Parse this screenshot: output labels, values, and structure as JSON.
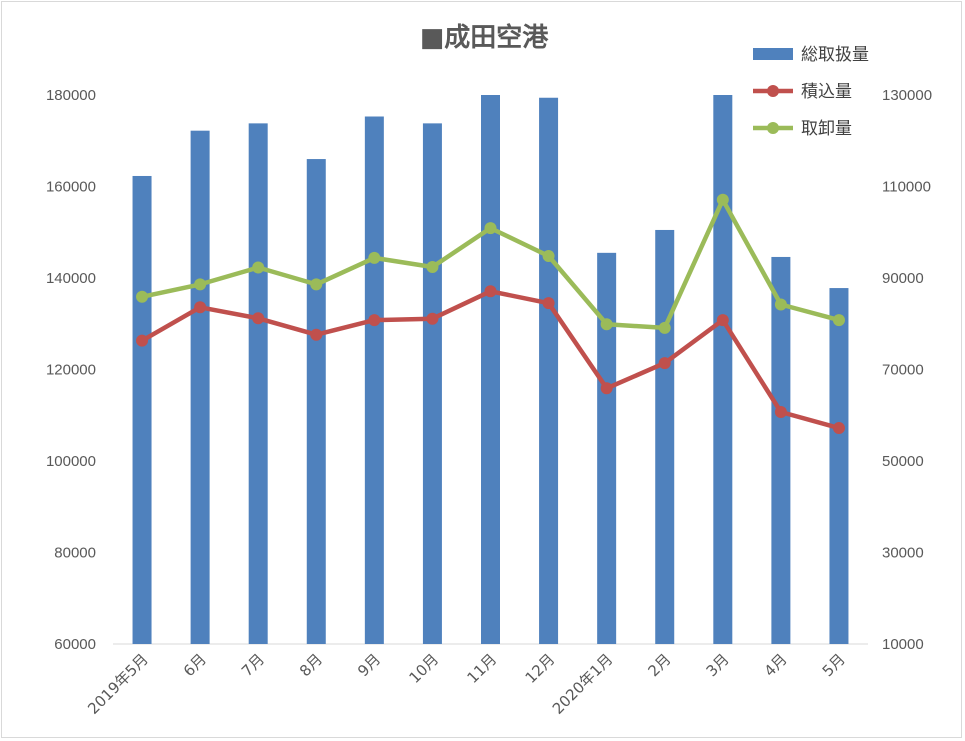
{
  "chart_data": {
    "type": "bar+line",
    "title": "■成田空港",
    "categories": [
      "2019年5月",
      "6月",
      "7月",
      "8月",
      "9月",
      "10月",
      "11月",
      "12月",
      "2020年1月",
      "2月",
      "3月",
      "4月",
      "5月"
    ],
    "y_left": {
      "min": 60000,
      "max": 180000,
      "ticks": [
        60000,
        80000,
        100000,
        120000,
        140000,
        160000,
        180000
      ]
    },
    "y_right": {
      "min": 10000,
      "max": 130000,
      "ticks": [
        10000,
        30000,
        50000,
        70000,
        90000,
        110000,
        130000
      ]
    },
    "legend_position": "top-right",
    "series": [
      {
        "name": "総取扱量",
        "type": "bar",
        "axis": "left",
        "color": "#4f81bd",
        "values": [
          162300,
          172200,
          173800,
          166000,
          175300,
          173800,
          180000,
          179400,
          145500,
          150500,
          180000,
          144600,
          137800
        ]
      },
      {
        "name": "積込量",
        "type": "line",
        "axis": "right",
        "color": "#c0504d",
        "values": [
          76300,
          83600,
          81200,
          77600,
          80800,
          81100,
          87100,
          84500,
          65900,
          71400,
          80800,
          60700,
          57200
        ]
      },
      {
        "name": "取卸量",
        "type": "line",
        "axis": "right",
        "color": "#9bbb59",
        "values": [
          85900,
          88600,
          92300,
          88600,
          94400,
          92400,
          100900,
          94800,
          79900,
          79100,
          107100,
          84200,
          80800
        ]
      }
    ]
  }
}
